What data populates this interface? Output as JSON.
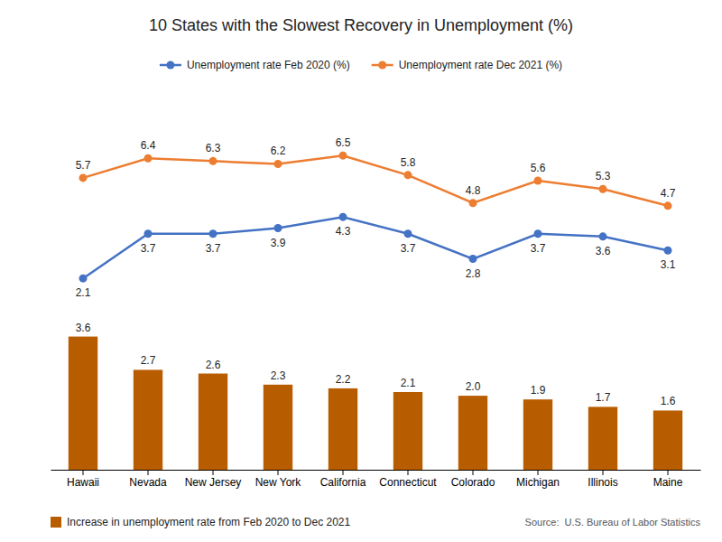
{
  "chart_data": [
    {
      "type": "line",
      "title": "10 States with the Slowest Recovery in Unemployment (%)",
      "categories": [
        "Hawaii",
        "Nevada",
        "New Jersey",
        "New York",
        "California",
        "Connecticut",
        "Colorado",
        "Michigan",
        "Illinois",
        "Maine"
      ],
      "series": [
        {
          "name": "Unemployment rate Feb 2020 (%)",
          "color": "#4472C4",
          "values": [
            2.1,
            3.7,
            3.7,
            3.9,
            4.3,
            3.7,
            2.8,
            3.7,
            3.6,
            3.1
          ]
        },
        {
          "name": "Unemployment rate Dec 2021 (%)",
          "color": "#ED7D31",
          "values": [
            5.7,
            6.4,
            6.3,
            6.2,
            6.5,
            5.8,
            4.8,
            5.6,
            5.3,
            4.7
          ]
        }
      ],
      "ylim": [
        1.2,
        7.8
      ],
      "marker": "circle",
      "data_labels": true,
      "tick_labels": false,
      "legend": "top"
    },
    {
      "type": "bar",
      "categories": [
        "Hawaii",
        "Nevada",
        "New Jersey",
        "New York",
        "California",
        "Connecticut",
        "Colorado",
        "Michigan",
        "Illinois",
        "Maine"
      ],
      "series": [
        {
          "name": "Increase in unemployment rate from Feb 2020 to Dec 2021",
          "color": "#B85C00",
          "values": [
            3.6,
            2.7,
            2.6,
            2.3,
            2.2,
            2.1,
            2.0,
            1.9,
            1.7,
            1.6
          ],
          "value_labels": [
            "3.6",
            "2.7",
            "2.6",
            "2.3",
            "2.2",
            "2.1",
            "2.0",
            "1.9",
            "1.7",
            "1.6"
          ]
        }
      ],
      "ylim": [
        0,
        4.2
      ],
      "data_labels": true,
      "tick_labels": "x",
      "legend": "bottom",
      "annotations": [
        "Source:  U.S. Bureau of Labor Statistics"
      ]
    }
  ]
}
